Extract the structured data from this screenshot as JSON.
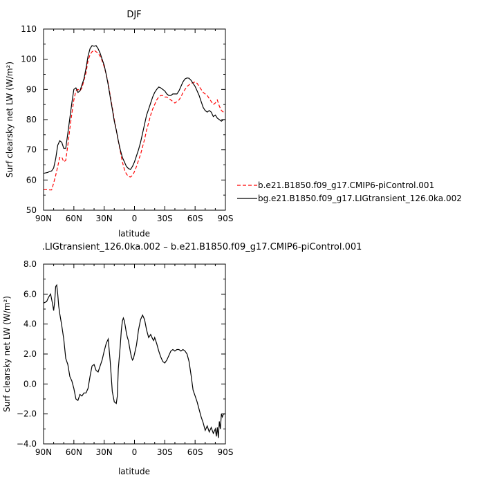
{
  "chart_data": [
    {
      "type": "line",
      "title": "DJF",
      "xlabel": "latitude",
      "ylabel": "Surf clearsky net LW (W/m²)",
      "xlim": [
        90,
        -90
      ],
      "ylim": [
        50,
        110
      ],
      "x_ticks": [
        {
          "value": 90,
          "label": "90N"
        },
        {
          "value": 60,
          "label": "60N"
        },
        {
          "value": 30,
          "label": "30N"
        },
        {
          "value": 0,
          "label": "0"
        },
        {
          "value": -30,
          "label": "30S"
        },
        {
          "value": -60,
          "label": "60S"
        },
        {
          "value": -90,
          "label": "90S"
        }
      ],
      "y_ticks": [
        {
          "value": 50,
          "label": "50"
        },
        {
          "value": 60,
          "label": "60"
        },
        {
          "value": 70,
          "label": "70"
        },
        {
          "value": 80,
          "label": "80"
        },
        {
          "value": 90,
          "label": "90"
        },
        {
          "value": 100,
          "label": "100"
        },
        {
          "value": 110,
          "label": "110"
        }
      ],
      "grid": false,
      "legend_position": "right",
      "series": [
        {
          "name": "b.e21.B1850.f09_g17.CMIP6-piControl.001",
          "color": "#ff0000",
          "dash": "dashed",
          "x": [
            90,
            86,
            84,
            82,
            80,
            78,
            76,
            74,
            72,
            70,
            68,
            66,
            64,
            62,
            60,
            58,
            56,
            54,
            52,
            50,
            48,
            46,
            44,
            42,
            40,
            38,
            36,
            34,
            32,
            30,
            28,
            26,
            24,
            22,
            20,
            18,
            16,
            14,
            12,
            10,
            8,
            6,
            4,
            2,
            0,
            -2,
            -4,
            -6,
            -8,
            -10,
            -12,
            -14,
            -16,
            -18,
            -20,
            -22,
            -24,
            -26,
            -28,
            -30,
            -32,
            -34,
            -36,
            -38,
            -40,
            -42,
            -44,
            -46,
            -48,
            -50,
            -52,
            -54,
            -56,
            -58,
            -60,
            -62,
            -64,
            -66,
            -68,
            -70,
            -72,
            -74,
            -76,
            -78,
            -80,
            -82,
            -84,
            -86,
            -88,
            -90
          ],
          "y": [
            56.8,
            56.8,
            56.7,
            56.7,
            59.0,
            61.5,
            64.5,
            67.5,
            67.6,
            66.0,
            66.5,
            71.5,
            77.0,
            82.0,
            86.5,
            89.5,
            90.0,
            89.5,
            90.5,
            93.0,
            95.5,
            99.5,
            101.5,
            102.5,
            103.0,
            102.5,
            102.0,
            101.0,
            99.5,
            97.5,
            95.0,
            92.0,
            88.0,
            84.0,
            80.0,
            76.5,
            73.0,
            69.5,
            66.0,
            63.5,
            62.0,
            61.2,
            61.0,
            61.5,
            62.8,
            64.5,
            66.5,
            68.5,
            71.0,
            73.5,
            76.5,
            79.0,
            81.5,
            83.5,
            85.0,
            86.5,
            87.5,
            88.0,
            88.0,
            87.5,
            87.5,
            87.0,
            86.5,
            86.0,
            85.5,
            86.0,
            86.5,
            87.5,
            89.0,
            90.0,
            91.0,
            91.5,
            92.0,
            92.2,
            92.5,
            92.0,
            91.0,
            90.0,
            89.0,
            88.5,
            88.0,
            87.0,
            86.0,
            85.0,
            85.5,
            86.5,
            84.5,
            83.0,
            82.5,
            82.0
          ]
        },
        {
          "name": "bg.e21.B1850.f09_g17.LIGtransient_126.0ka.002",
          "color": "#000000",
          "dash": "solid",
          "x": [
            90,
            86,
            84,
            82,
            80,
            78,
            76,
            74,
            72,
            70,
            68,
            66,
            64,
            62,
            60,
            58,
            56,
            54,
            52,
            50,
            48,
            46,
            44,
            42,
            40,
            38,
            36,
            34,
            32,
            30,
            28,
            26,
            24,
            22,
            20,
            18,
            16,
            14,
            12,
            10,
            8,
            6,
            4,
            2,
            0,
            -2,
            -4,
            -6,
            -8,
            -10,
            -12,
            -14,
            -16,
            -18,
            -20,
            -22,
            -24,
            -26,
            -28,
            -30,
            -32,
            -34,
            -36,
            -38,
            -40,
            -42,
            -44,
            -46,
            -48,
            -50,
            -52,
            -54,
            -56,
            -58,
            -60,
            -62,
            -64,
            -66,
            -68,
            -70,
            -72,
            -74,
            -76,
            -78,
            -80,
            -82,
            -84,
            -86,
            -88,
            -90
          ],
          "y": [
            62.2,
            62.5,
            62.8,
            63.0,
            64.0,
            67.0,
            71.5,
            73.0,
            72.5,
            70.5,
            70.5,
            75.5,
            80.5,
            85.5,
            90.0,
            90.5,
            89.0,
            89.5,
            91.5,
            93.5,
            97.0,
            101.0,
            103.5,
            104.5,
            104.3,
            104.5,
            103.5,
            102.0,
            100.0,
            98.0,
            95.0,
            91.5,
            87.5,
            83.5,
            79.5,
            76.5,
            73.0,
            70.0,
            67.5,
            66.0,
            64.5,
            63.8,
            63.5,
            64.5,
            66.0,
            68.0,
            70.0,
            72.5,
            75.5,
            78.5,
            81.5,
            83.5,
            85.5,
            87.5,
            89.0,
            90.0,
            90.8,
            90.5,
            90.0,
            89.5,
            88.5,
            88.0,
            88.0,
            88.5,
            88.5,
            88.5,
            89.5,
            91.0,
            92.5,
            93.5,
            93.8,
            93.7,
            93.0,
            92.0,
            91.0,
            89.5,
            88.0,
            86.0,
            84.0,
            83.0,
            82.5,
            83.0,
            82.5,
            81.0,
            81.5,
            80.5,
            80.0,
            79.5,
            80.0,
            80.0
          ]
        }
      ]
    },
    {
      "type": "line",
      "title": ".LIGtransient_126.0ka.002 – b.e21.B1850.f09_g17.CMIP6-piControl.001",
      "xlabel": "latitude",
      "ylabel": "Surf clearsky net LW (W/m²)",
      "xlim": [
        90,
        -90
      ],
      "ylim": [
        -4.0,
        8.0
      ],
      "x_ticks": [
        {
          "value": 90,
          "label": "90N"
        },
        {
          "value": 60,
          "label": "60N"
        },
        {
          "value": 30,
          "label": "30N"
        },
        {
          "value": 0,
          "label": "0"
        },
        {
          "value": -30,
          "label": "30S"
        },
        {
          "value": -60,
          "label": "60S"
        },
        {
          "value": -90,
          "label": "90S"
        }
      ],
      "y_ticks": [
        {
          "value": -4.0,
          "label": "−4.0"
        },
        {
          "value": -2.0,
          "label": "−2.0"
        },
        {
          "value": 0.0,
          "label": "0.0"
        },
        {
          "value": 2.0,
          "label": "2.0"
        },
        {
          "value": 4.0,
          "label": "4.0"
        },
        {
          "value": 6.0,
          "label": "6.0"
        },
        {
          "value": 8.0,
          "label": "8.0"
        }
      ],
      "grid": false,
      "series": [
        {
          "color": "#000000",
          "x": [
            90,
            87,
            85,
            83,
            81,
            80,
            79,
            78,
            77,
            76,
            75,
            74,
            72,
            70,
            68,
            66,
            64,
            62,
            60,
            58,
            56,
            54,
            52,
            50,
            48,
            46,
            44,
            42,
            40,
            38,
            36,
            34,
            32,
            30,
            28,
            26,
            24,
            22,
            20,
            18,
            17,
            16,
            14,
            13,
            12,
            11,
            10,
            9,
            8,
            7,
            6,
            5,
            4,
            3,
            2,
            1,
            0,
            -2,
            -4,
            -6,
            -8,
            -10,
            -12,
            -14,
            -16,
            -18,
            -19,
            -20,
            -22,
            -24,
            -26,
            -28,
            -30,
            -32,
            -34,
            -36,
            -38,
            -40,
            -42,
            -44,
            -46,
            -48,
            -50,
            -52,
            -54,
            -56,
            -58,
            -60,
            -62,
            -64,
            -66,
            -68,
            -70,
            -72,
            -74,
            -76,
            -78,
            -80,
            -81,
            -82,
            -83,
            -84,
            -85,
            -86,
            -87,
            -88,
            -89,
            -90
          ],
          "y": [
            5.4,
            5.5,
            5.8,
            6.0,
            5.3,
            4.9,
            5.5,
            6.5,
            6.6,
            6.0,
            5.2,
            4.7,
            3.9,
            3.0,
            1.7,
            1.3,
            0.5,
            0.2,
            -0.3,
            -1.0,
            -1.1,
            -0.7,
            -0.8,
            -0.6,
            -0.6,
            -0.3,
            0.5,
            1.2,
            1.3,
            0.9,
            0.8,
            1.2,
            1.6,
            2.2,
            2.7,
            3.0,
            1.5,
            -0.5,
            -1.2,
            -1.3,
            -0.8,
            1.0,
            2.6,
            3.6,
            4.2,
            4.4,
            4.2,
            3.8,
            3.4,
            3.1,
            2.9,
            2.5,
            2.1,
            1.8,
            1.6,
            1.7,
            2.0,
            2.6,
            3.6,
            4.3,
            4.6,
            4.3,
            3.6,
            3.1,
            3.3,
            3.0,
            2.9,
            3.1,
            2.7,
            2.2,
            1.8,
            1.5,
            1.4,
            1.6,
            1.9,
            2.2,
            2.3,
            2.2,
            2.3,
            2.3,
            2.2,
            2.3,
            2.2,
            2.0,
            1.5,
            0.6,
            -0.4,
            -0.8,
            -1.2,
            -1.7,
            -2.2,
            -2.6,
            -3.1,
            -2.8,
            -3.2,
            -2.9,
            -3.3,
            -3.0,
            -3.5,
            -2.9,
            -3.6,
            -2.5,
            -3.0,
            -2.0,
            -2.2,
            -2.0,
            -2.0,
            -2.0
          ]
        }
      ]
    }
  ]
}
